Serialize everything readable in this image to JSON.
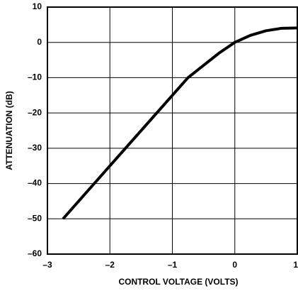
{
  "chart_data": {
    "type": "line",
    "xlabel": "CONTROL VOLTAGE (VOLTS)",
    "ylabel": "ATTENUATION (dB)",
    "x": [
      -2.75,
      -2.5,
      -2,
      -1.5,
      -1,
      -0.75,
      -0.5,
      -0.25,
      0,
      0.25,
      0.5,
      0.75,
      1
    ],
    "series": [
      {
        "color": "#000000",
        "values": [
          -50,
          -45,
          -35,
          -25,
          -15,
          -10,
          -6.5,
          -3,
          0,
          2,
          3.3,
          4,
          4.1
        ]
      }
    ],
    "xlim": [
      -3,
      1
    ],
    "xticks": [
      {
        "value": -3,
        "label": "–3"
      },
      {
        "value": -2,
        "label": "–2"
      },
      {
        "value": -1,
        "label": "–1"
      },
      0,
      1
    ],
    "ylim": [
      -60,
      10
    ],
    "yticks": [
      10,
      0,
      {
        "value": -10,
        "label": "–10"
      },
      {
        "value": -20,
        "label": "–20"
      },
      {
        "value": -30,
        "label": "–30"
      },
      {
        "value": -40,
        "label": "–40"
      },
      {
        "value": -50,
        "label": "–50"
      },
      {
        "value": -60,
        "label": "–60"
      }
    ],
    "grid": true
  }
}
